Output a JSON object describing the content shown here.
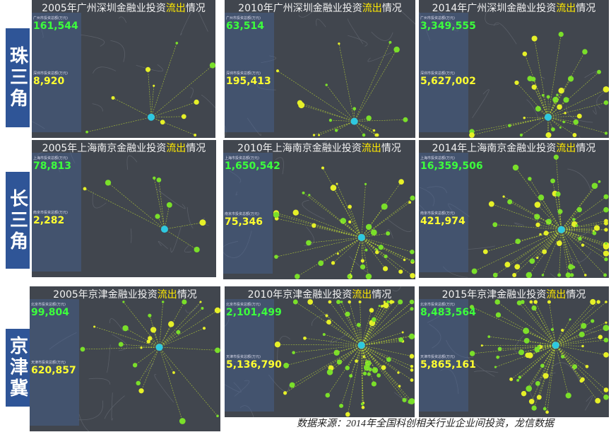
{
  "row_labels": [
    "珠三角",
    "长三角",
    "京津冀"
  ],
  "panels": [
    {
      "title": {
        "before": "2005年广州深圳金融业投资",
        "highlight": "流出",
        "after": "情况"
      },
      "city1": {
        "label": "广州市投资总额(万元)",
        "total": "161,544"
      },
      "city2": {
        "label": "深圳市投资总额(万元)",
        "total": "8,920"
      }
    },
    {
      "title": {
        "before": "2010年广州深圳金融业投资",
        "highlight": "流出",
        "after": "情况"
      },
      "city1": {
        "label": "广州市投资总额(万元)",
        "total": "63,514"
      },
      "city2": {
        "label": "深圳市投资总额(万元)",
        "total": "195,413"
      }
    },
    {
      "title": {
        "before": "2014年广州深圳金融业投资",
        "highlight": "流出",
        "after": "情况"
      },
      "city1": {
        "label": "广州市投资总额(万元)",
        "total": "3,349,555"
      },
      "city2": {
        "label": "深圳市投资总额(万元)",
        "total": "5,627,002"
      }
    },
    {
      "title": {
        "before": "2005年上海南京金融业投资",
        "highlight": "流出",
        "after": "情况"
      },
      "city1": {
        "label": "上海市投资总额(万元)",
        "total": "78,813"
      },
      "city2": {
        "label": "南京市投资总额(万元)",
        "total": "2,282"
      }
    },
    {
      "title": {
        "before": "2010年上海南京金融业投资",
        "highlight": "流出",
        "after": "情况"
      },
      "city1": {
        "label": "上海市投资总额(万元)",
        "total": "1,650,542"
      },
      "city2": {
        "label": "南京市投资总额(万元)",
        "total": "75,346"
      }
    },
    {
      "title": {
        "before": "2014年上海南京金融业投资",
        "highlight": "流出",
        "after": "情况"
      },
      "city1": {
        "label": "上海市投资总额(万元)",
        "total": "16,359,506"
      },
      "city2": {
        "label": "南京市投资总额(万元)",
        "total": "421,974"
      }
    },
    {
      "title": {
        "before": "2005年京津金融业投资",
        "highlight": "流出",
        "after": "情况"
      },
      "city1": {
        "label": "北京市投资总额(万元)",
        "total": "99,804"
      },
      "city2": {
        "label": "天津市投资总额(万元)",
        "total": "620,857"
      }
    },
    {
      "title": {
        "before": "2010年京津金融业投资",
        "highlight": "流出",
        "after": "情况"
      },
      "city1": {
        "label": "北京市投资总额(万元)",
        "total": "2,101,499"
      },
      "city2": {
        "label": "天津市投资总额(万元)",
        "total": "5,136,790"
      }
    },
    {
      "title": {
        "before": "2015年京津金融业投资",
        "highlight": "流出",
        "after": "情况"
      },
      "city1": {
        "label": "北京市投资总额(万元)",
        "total": "8,483,564"
      },
      "city2": {
        "label": "天津市投资总额(万元)",
        "total": "5,865,161"
      }
    }
  ],
  "source": "数据来源：2014年全国科创相关行业企业间投资，龙信数据"
}
